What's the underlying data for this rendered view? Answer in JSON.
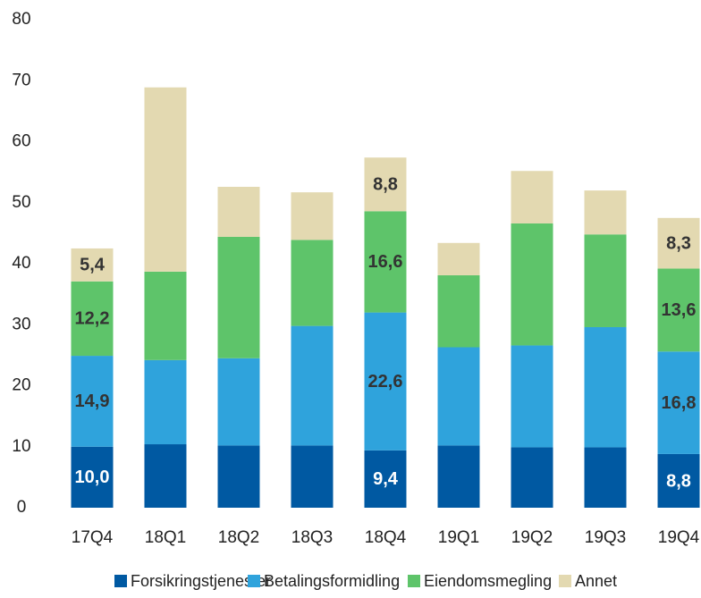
{
  "chart_data": {
    "type": "stacked_bar",
    "categories": [
      "17Q4",
      "18Q1",
      "18Q2",
      "18Q3",
      "18Q4",
      "19Q1",
      "19Q2",
      "19Q3",
      "19Q4"
    ],
    "series": [
      {
        "name": "Forsikringstjenester",
        "color": "#0059a2",
        "label_color": "#ffffff",
        "values": [
          10.0,
          10.4,
          10.2,
          10.2,
          9.4,
          10.2,
          9.9,
          9.9,
          8.8
        ],
        "value_labels": [
          "10,0",
          null,
          null,
          null,
          "9,4",
          null,
          null,
          null,
          "8,8"
        ]
      },
      {
        "name": "Betalingsformidling",
        "color": "#2fa3dc",
        "label_color": "#333333",
        "values": [
          14.9,
          13.8,
          14.3,
          19.6,
          22.6,
          16.1,
          16.7,
          19.7,
          16.8
        ],
        "value_labels": [
          "14,9",
          null,
          null,
          null,
          "22,6",
          null,
          null,
          null,
          "16,8"
        ]
      },
      {
        "name": "Eiendomsmegling",
        "color": "#5ec46a",
        "label_color": "#333333",
        "values": [
          12.2,
          14.5,
          19.9,
          14.1,
          16.6,
          11.8,
          20.0,
          15.2,
          13.6
        ],
        "value_labels": [
          "12,2",
          null,
          null,
          null,
          "16,6",
          null,
          null,
          null,
          "13,6"
        ]
      },
      {
        "name": "Annet",
        "color": "#e3d9b1",
        "label_color": "#333333",
        "values": [
          5.4,
          30.2,
          8.2,
          7.8,
          8.8,
          5.3,
          8.6,
          7.2,
          8.3
        ],
        "value_labels": [
          "5,4",
          null,
          null,
          null,
          "8,8",
          null,
          null,
          null,
          "8,3"
        ]
      }
    ],
    "ylim": [
      0,
      80
    ],
    "yticks": [
      0,
      10,
      20,
      30,
      40,
      50,
      60,
      70,
      80
    ],
    "grid": false,
    "legend": "bottom"
  }
}
